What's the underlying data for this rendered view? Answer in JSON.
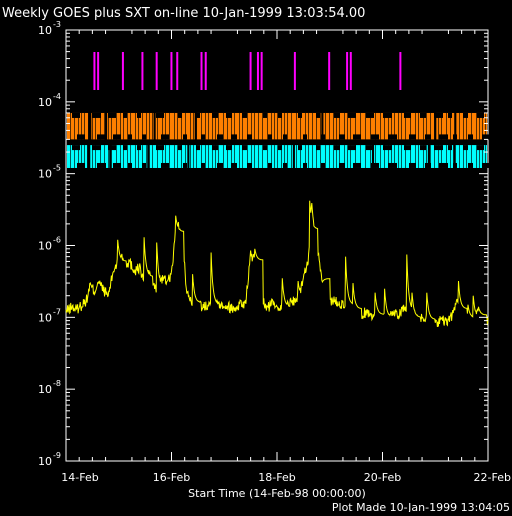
{
  "chart_data": {
    "type": "line",
    "title": "Weekly GOES plus SXT on-line 10-Jan-1999 13:03:54.00",
    "xlabel": "Start Time (14-Feb-98 00:00:00)",
    "footer": "Plot Made 10-Jan-1999 13:04:05",
    "x_axis": {
      "unit": "days since 14-Feb-98",
      "range": [
        0,
        8
      ],
      "ticks": [
        {
          "x": 0,
          "label": "14-Feb"
        },
        {
          "x": 2,
          "label": "16-Feb"
        },
        {
          "x": 4,
          "label": "18-Feb"
        },
        {
          "x": 6,
          "label": "20-Feb"
        },
        {
          "x": 8,
          "label": "22-Feb"
        }
      ]
    },
    "y_axis": {
      "scale": "log",
      "range": [
        1e-09,
        0.001
      ],
      "ticks": [
        {
          "exp": -3,
          "base": "10",
          "sup": "-3"
        },
        {
          "exp": -4,
          "base": "10",
          "sup": "-4"
        },
        {
          "exp": -5,
          "base": "10",
          "sup": "-5"
        },
        {
          "exp": -6,
          "base": "10",
          "sup": "-6"
        },
        {
          "exp": -7,
          "base": "10",
          "sup": "-7"
        },
        {
          "exp": -8,
          "base": "10",
          "sup": "-8"
        },
        {
          "exp": -9,
          "base": "10",
          "sup": "-9"
        }
      ]
    },
    "colors": {
      "flux": "#ffff00",
      "magenta": "#ff00ff",
      "orange": "#ff8000",
      "cyan": "#00ffff",
      "axes": "#ffffff"
    },
    "magenta_marks_x": [
      0.52,
      0.59,
      1.06,
      1.43,
      1.7,
      1.98,
      2.09,
      2.55,
      2.63,
      3.48,
      3.62,
      3.69,
      4.32,
      4.97,
      5.31,
      5.38,
      6.32
    ],
    "orange_band": {
      "y_range": [
        3e-05,
        7e-05
      ],
      "gaps": [
        [
          0.42,
          0.48
        ],
        [
          0.74,
          0.78
        ],
        [
          1.66,
          1.7
        ],
        [
          2.44,
          2.48
        ],
        [
          4.84,
          4.88
        ],
        [
          6.98,
          7.02
        ],
        [
          7.36,
          7.4
        ]
      ]
    },
    "cyan_band": {
      "y_range": [
        1.2e-05,
        2.5e-05
      ],
      "gaps": [
        [
          0.4,
          0.46
        ],
        [
          0.82,
          0.86
        ],
        [
          1.54,
          1.58
        ],
        [
          2.3,
          2.34
        ],
        [
          4.3,
          4.34
        ],
        [
          5.8,
          5.84
        ],
        [
          6.86,
          6.9
        ],
        [
          7.34,
          7.38
        ]
      ]
    },
    "series": [
      {
        "x": [
          0.0,
          0.1,
          0.2,
          0.3,
          0.4,
          0.45,
          0.55,
          0.6,
          0.7,
          0.8,
          0.9,
          1.0,
          1.05,
          1.1,
          1.2,
          1.3,
          1.4,
          1.45,
          1.55,
          1.65,
          1.7,
          1.8,
          1.9,
          2.0,
          2.1,
          2.2,
          2.3,
          2.4,
          2.5,
          2.6,
          2.7,
          2.8,
          2.9,
          3.0,
          3.1,
          3.2,
          3.3,
          3.4,
          3.5,
          3.6,
          3.7,
          3.8,
          3.9,
          4.0,
          4.1,
          4.2,
          4.3,
          4.4,
          4.5,
          4.6,
          4.62,
          4.66,
          4.7,
          4.8,
          4.9,
          5.0,
          5.1,
          5.2,
          5.3,
          5.4,
          5.5,
          5.6,
          5.7,
          5.8,
          5.9,
          6.0,
          6.1,
          6.2,
          6.3,
          6.4,
          6.5,
          6.6,
          6.7,
          6.8,
          6.9,
          7.0,
          7.1,
          7.2,
          7.3,
          7.4,
          7.5,
          7.6,
          7.7,
          7.8,
          7.9,
          8.0
        ],
        "y": [
          1.2e-07,
          1.4e-07,
          1.3e-07,
          1.5e-07,
          1.8e-07,
          2.8e-07,
          2.3e-07,
          3.2e-07,
          2.5e-07,
          2e-07,
          4.5e-07,
          6.5e-07,
          7.5e-07,
          5.5e-07,
          6e-07,
          4.5e-07,
          5e-07,
          3.5e-07,
          4.2e-07,
          3e-07,
          2.4e-07,
          3.5e-07,
          3.2e-07,
          4e-07,
          2.2e-06,
          1.2e-06,
          2e-07,
          1.6e-07,
          1.5e-07,
          1.4e-07,
          1.6e-07,
          1.4e-07,
          1.6e-07,
          1.5e-07,
          1.4e-07,
          1.3e-07,
          1.6e-07,
          1.5e-07,
          7.5e-07,
          6e-07,
          2e-07,
          1.3e-07,
          1.6e-07,
          1.5e-07,
          1.4e-07,
          1.5e-07,
          1.7e-07,
          1.9e-07,
          3.5e-07,
          7e-07,
          1.7e-06,
          3.5e-06,
          1.6e-06,
          6e-07,
          2e-07,
          1.8e-07,
          1.7e-07,
          1.6e-07,
          1.5e-07,
          1.4e-07,
          1.2e-07,
          1.1e-07,
          1.2e-07,
          1.1e-07,
          1.1e-07,
          1e-07,
          1e-07,
          1.2e-07,
          1.1e-07,
          1.4e-07,
          1.1e-07,
          9.5e-08,
          9.5e-08,
          1e-07,
          8.5e-08,
          8e-08,
          9.5e-08,
          8.5e-08,
          1e-07,
          1.7e-07,
          9e-08,
          1e-07,
          9.5e-08,
          1.1e-07,
          1e-07,
          9e-08
        ]
      }
    ],
    "spikes": [
      {
        "x": 0.98,
        "peak": 1.2e-06
      },
      {
        "x": 1.48,
        "peak": 1.3e-06
      },
      {
        "x": 1.72,
        "peak": 1.1e-06
      },
      {
        "x": 2.08,
        "peak": 2.6e-06
      },
      {
        "x": 2.4,
        "peak": 4e-07
      },
      {
        "x": 2.75,
        "peak": 8e-07
      },
      {
        "x": 3.45,
        "peak": 2.7e-07
      },
      {
        "x": 3.58,
        "peak": 9e-07
      },
      {
        "x": 4.1,
        "peak": 3.5e-07
      },
      {
        "x": 4.4,
        "peak": 3.2e-07
      },
      {
        "x": 4.62,
        "peak": 4.2e-06
      },
      {
        "x": 4.85,
        "peak": 3e-07
      },
      {
        "x": 5.3,
        "peak": 7e-07
      },
      {
        "x": 5.44,
        "peak": 3e-07
      },
      {
        "x": 5.86,
        "peak": 2.2e-07
      },
      {
        "x": 6.04,
        "peak": 2.5e-07
      },
      {
        "x": 6.46,
        "peak": 7.5e-07
      },
      {
        "x": 6.56,
        "peak": 2.2e-07
      },
      {
        "x": 6.84,
        "peak": 2.2e-07
      },
      {
        "x": 7.44,
        "peak": 3.2e-07
      },
      {
        "x": 7.62,
        "peak": 1.5e-07
      },
      {
        "x": 7.72,
        "peak": 2e-07
      },
      {
        "x": 7.82,
        "peak": 1.4e-07
      }
    ],
    "grid": false
  }
}
